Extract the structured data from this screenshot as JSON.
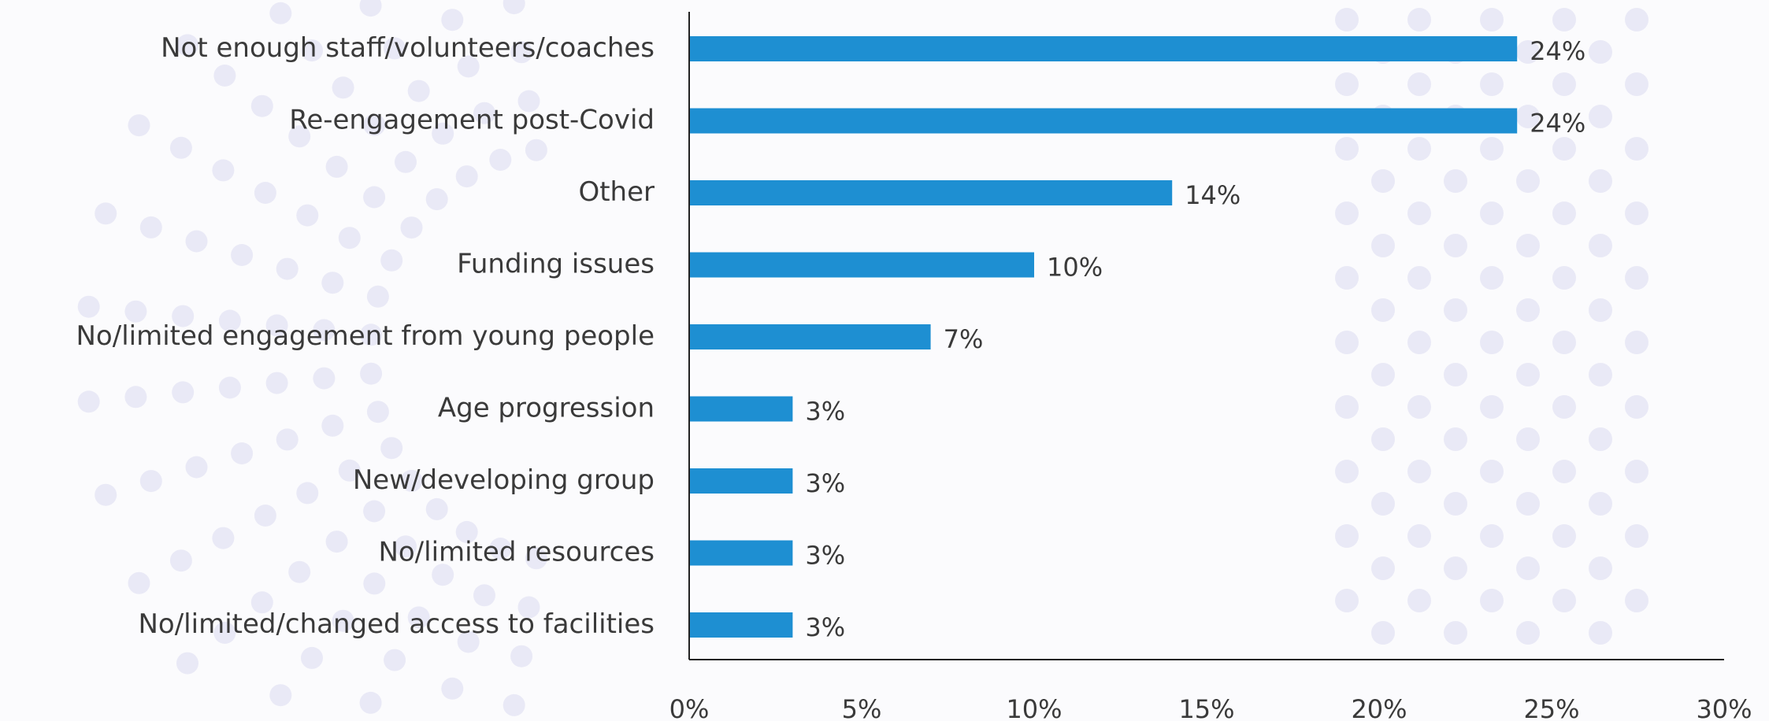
{
  "chart_data": {
    "type": "bar",
    "orientation": "horizontal",
    "title": "",
    "xlabel": "",
    "ylabel": "",
    "categories": [
      "Not enough staff/volunteers/coaches",
      "Re-engagement post-Covid",
      "Other",
      "Funding issues",
      "No/limited engagement from young people",
      "Age progression",
      "New/developing group",
      "No/limited resources",
      "No/limited/changed access to facilities"
    ],
    "values": [
      24,
      24,
      14,
      10,
      7,
      3,
      3,
      3,
      3
    ],
    "value_labels": [
      "24%",
      "24%",
      "14%",
      "10%",
      "7%",
      "3%",
      "3%",
      "3%",
      "3%"
    ],
    "xlim": [
      0,
      30
    ],
    "xticks": [
      0,
      5,
      10,
      15,
      20,
      25,
      30
    ],
    "xtick_labels": [
      "0%",
      "5%",
      "10%",
      "15%",
      "20%",
      "25%",
      "30%"
    ],
    "grid": false,
    "legend": "none",
    "bar_color": "#1e8fd2",
    "axis_color": "#222222",
    "text_color": "#3a3a3a",
    "background_color": "#fbfbfd",
    "decoration_dot_color": "#e9e9f6"
  }
}
